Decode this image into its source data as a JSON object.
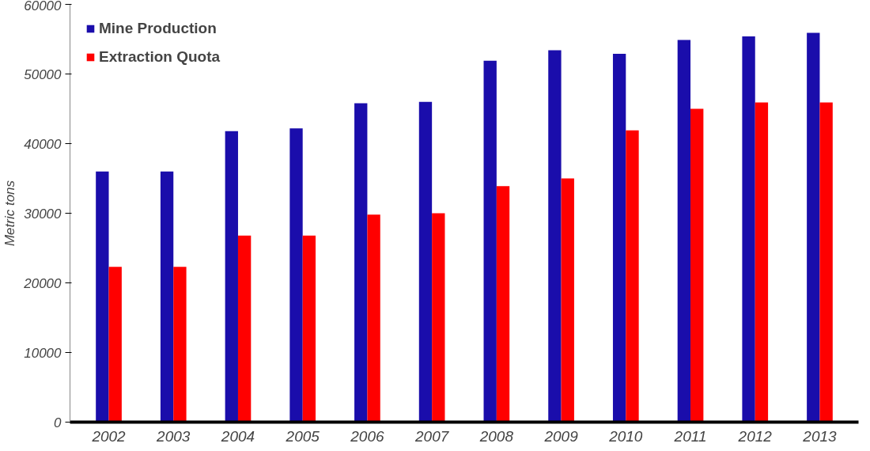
{
  "chart_data": {
    "type": "bar",
    "ylabel": "Metric tons",
    "categories": [
      "2002",
      "2003",
      "2004",
      "2005",
      "2006",
      "2007",
      "2008",
      "2009",
      "2010",
      "2011",
      "2012",
      "2013"
    ],
    "series": [
      {
        "name": "Mine Production",
        "color": "#1a0dab",
        "values": [
          36000,
          36000,
          41800,
          42200,
          45800,
          46000,
          51900,
          53400,
          52900,
          54900,
          55400,
          55900
        ]
      },
      {
        "name": "Extraction Quota",
        "color": "#ff0000",
        "values": [
          22300,
          22300,
          26800,
          26800,
          29800,
          30000,
          33900,
          35000,
          41900,
          45000,
          45900,
          45900
        ]
      }
    ],
    "ylim": [
      0,
      60000
    ],
    "yticks": [
      0,
      10000,
      20000,
      30000,
      40000,
      50000,
      60000
    ],
    "grid": false,
    "legend": "top left"
  }
}
